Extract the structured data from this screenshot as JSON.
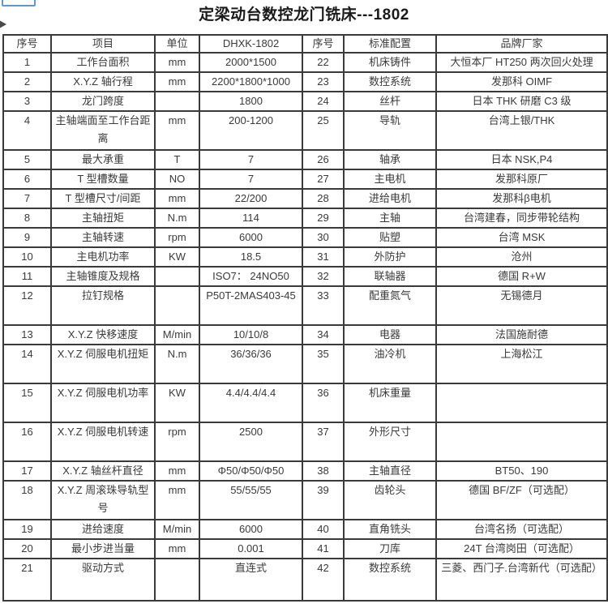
{
  "title": "定梁动台数控龙门铣床---1802",
  "table": {
    "headers": {
      "no": "序号",
      "item": "项目",
      "unit": "单位",
      "model": "DHXK-1802",
      "no2": "序号",
      "config": "标准配置",
      "brand": "品牌厂家"
    },
    "rows": [
      {
        "no": "1",
        "item": "工作台面积",
        "unit": "mm",
        "value": "2000*1500",
        "no2": "22",
        "config": "机床铸件",
        "brand": "大恒本厂 HT250 两次回火处理"
      },
      {
        "no": "2",
        "item": "X.Y.Z 轴行程",
        "unit": "mm",
        "value": "2200*1800*1000",
        "no2": "23",
        "config": "数控系统",
        "brand": "发那科 OIMF"
      },
      {
        "no": "3",
        "item": "龙门跨度",
        "unit": "",
        "value": "1800",
        "no2": "24",
        "config": "丝杆",
        "brand": "日本 THK 研磨 C3 级"
      },
      {
        "no": "4",
        "item": "主轴端面至工作台距离",
        "unit": "mm",
        "value": "200-1200",
        "no2": "25",
        "config": "导轨",
        "brand": "台湾上银/THK"
      },
      {
        "no": "5",
        "item": "最大承重",
        "unit": "T",
        "value": "7",
        "no2": "26",
        "config": "轴承",
        "brand": "日本 NSK,P4"
      },
      {
        "no": "6",
        "item": "T 型槽数量",
        "unit": "NO",
        "value": "7",
        "no2": "27",
        "config": "主电机",
        "brand": "发那科原厂"
      },
      {
        "no": "7",
        "item": "T 型槽尺寸/间距",
        "unit": "mm",
        "value": "22/200",
        "no2": "28",
        "config": "进给电机",
        "brand": "发那科β电机"
      },
      {
        "no": "8",
        "item": "主轴扭矩",
        "unit": "N.m",
        "value": "114",
        "no2": "29",
        "config": "主轴",
        "brand": "台湾建春，同步带轮结构"
      },
      {
        "no": "9",
        "item": "主轴转速",
        "unit": "rpm",
        "value": "6000",
        "no2": "30",
        "config": "贴塑",
        "brand": "台湾 MSK"
      },
      {
        "no": "10",
        "item": "主电机功率",
        "unit": "KW",
        "value": "18.5",
        "no2": "31",
        "config": "外防护",
        "brand": "沧州"
      },
      {
        "no": "11",
        "item": "主轴锥度及规格",
        "unit": "",
        "value": "ISO7： 24NO50",
        "no2": "32",
        "config": "联轴器",
        "brand": "德国 R+W"
      },
      {
        "no": "12",
        "item": "拉钉规格",
        "unit": "",
        "value": "P50T-2MAS403-45",
        "no2": "33",
        "config": "配重氮气",
        "brand": "无锡德月"
      },
      {
        "no": "13",
        "item": "X.Y.Z 快移速度",
        "unit": "M/min",
        "value": "10/10/8",
        "no2": "34",
        "config": "电器",
        "brand": "法国施耐德"
      },
      {
        "no": "14",
        "item": "X.Y.Z 伺服电机扭矩",
        "unit": "N.m",
        "value": "36/36/36",
        "no2": "35",
        "config": "油冷机",
        "brand": "上海松江"
      },
      {
        "no": "15",
        "item": "X.Y.Z 伺服电机功率",
        "unit": "KW",
        "value": "4.4/4.4/4.4",
        "no2": "36",
        "config": "机床重量",
        "brand": ""
      },
      {
        "no": "16",
        "item": "X.Y.Z 伺服电机转速",
        "unit": "rpm",
        "value": "2500",
        "no2": "37",
        "config": "外形尺寸",
        "brand": ""
      },
      {
        "no": "17",
        "item": "X.Y.Z 轴丝杆直径",
        "unit": "mm",
        "value": "Φ50/Φ50/Φ50",
        "no2": "38",
        "config": "主轴直径",
        "brand": "BT50、190"
      },
      {
        "no": "18",
        "item": "X.Y.Z 周滚珠导轨型号",
        "unit": "mm",
        "value": "55/55/55",
        "no2": "39",
        "config": "齿轮头",
        "brand": "德国 BF/ZF（可选配）"
      },
      {
        "no": "19",
        "item": "进给速度",
        "unit": "M/min",
        "value": "6000",
        "no2": "40",
        "config": "直角铣头",
        "brand": "台湾名扬（可选配）"
      },
      {
        "no": "20",
        "item": "最小步进当量",
        "unit": "mm",
        "value": "0.001",
        "no2": "41",
        "config": "刀库",
        "brand": "24T 台湾岗田（可选配）"
      },
      {
        "no": "21",
        "item": "驱动方式",
        "unit": "",
        "value": "直连式",
        "no2": "42",
        "config": "数控系统",
        "brand": "三菱、西门子.台湾新代（可选配）"
      }
    ]
  },
  "colors": {
    "border": "#3a3a3a",
    "text": "#3a3a3a",
    "title": "#1a1a1a",
    "artifact_blue": "#5b9bd5"
  }
}
